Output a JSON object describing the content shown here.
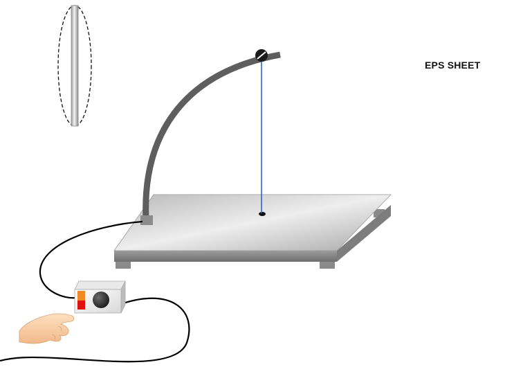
{
  "label": {
    "text": "EPS SHEET"
  },
  "colors": {
    "wire": "#1f5fc9",
    "arm": "#5e5e5e",
    "cable": "#000000",
    "button": "#2f2f2f",
    "indicator_top": "#f08a24",
    "indicator_bottom": "#e01010"
  },
  "icons": [
    "eps-rod-icon",
    "hand-icon",
    "power-button-icon",
    "indicator-light-icon"
  ]
}
